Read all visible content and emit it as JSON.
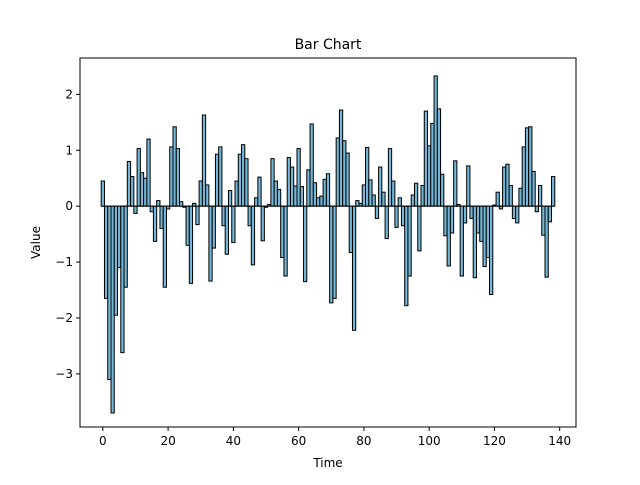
{
  "chart_data": {
    "type": "bar",
    "title": "Bar Chart",
    "xlabel": "Time",
    "ylabel": "Value",
    "xlim": [
      -7,
      145
    ],
    "ylim": [
      -3.95,
      2.65
    ],
    "xticks": [
      0,
      20,
      40,
      60,
      80,
      100,
      120,
      140
    ],
    "yticks": [
      -3,
      -2,
      -1,
      0,
      1,
      2
    ],
    "ytick_labels": [
      "−3",
      "−2",
      "−1",
      "0",
      "1",
      "2"
    ],
    "grid": false,
    "colors": {
      "bar_fill": "#75b7d6",
      "bar_edge": "#000000",
      "axes": "#000000"
    },
    "x": [
      0,
      1,
      2,
      3,
      4,
      5,
      6,
      7,
      8,
      9,
      10,
      11,
      12,
      13,
      14,
      15,
      16,
      17,
      18,
      19,
      20,
      21,
      22,
      23,
      24,
      25,
      26,
      27,
      28,
      29,
      30,
      31,
      32,
      33,
      34,
      35,
      36,
      37,
      38,
      39,
      40,
      41,
      42,
      43,
      44,
      45,
      46,
      47,
      48,
      49,
      50,
      51,
      52,
      53,
      54,
      55,
      56,
      57,
      58,
      59,
      60,
      61,
      62,
      63,
      64,
      65,
      66,
      67,
      68,
      69,
      70,
      71,
      72,
      73,
      74,
      75,
      76,
      77,
      78,
      79,
      80,
      81,
      82,
      83,
      84,
      85,
      86,
      87,
      88,
      89,
      90,
      91,
      92,
      93,
      94,
      95,
      96,
      97,
      98,
      99,
      100,
      101,
      102,
      103,
      104,
      105,
      106,
      107,
      108,
      109,
      110,
      111,
      112,
      113,
      114,
      115,
      116,
      117,
      118,
      119,
      120,
      121,
      122,
      123,
      124,
      125,
      126,
      127,
      128,
      129,
      130,
      131,
      132,
      133,
      134,
      135,
      136,
      137,
      138
    ],
    "values": [
      0.45,
      -1.65,
      -3.1,
      -3.7,
      -1.95,
      -1.1,
      -2.62,
      -1.45,
      0.8,
      0.53,
      -0.13,
      1.03,
      0.6,
      0.5,
      1.2,
      -0.1,
      -0.63,
      0.1,
      -0.4,
      -1.45,
      -0.05,
      1.06,
      1.42,
      1.03,
      0.08,
      -0.02,
      -0.7,
      -1.38,
      0.05,
      -0.33,
      0.45,
      1.63,
      0.38,
      -1.34,
      -0.75,
      0.93,
      1.06,
      -0.35,
      -0.86,
      0.28,
      -0.65,
      0.45,
      0.93,
      1.1,
      0.85,
      -0.35,
      -1.05,
      0.15,
      0.52,
      -0.62,
      -0.02,
      0.03,
      0.85,
      0.45,
      0.3,
      -0.92,
      -1.25,
      0.87,
      0.7,
      0.36,
      1.03,
      0.35,
      -1.35,
      0.65,
      1.47,
      0.42,
      0.15,
      0.18,
      0.48,
      0.58,
      -1.73,
      -1.65,
      1.22,
      1.72,
      1.17,
      0.95,
      -0.83,
      -2.22,
      0.1,
      0.05,
      0.38,
      1.05,
      0.47,
      0.2,
      -0.22,
      0.7,
      0.25,
      -0.58,
      1.03,
      0.45,
      -0.38,
      0.15,
      -0.35,
      -1.78,
      -1.25,
      0.2,
      0.41,
      -0.8,
      0.37,
      1.7,
      1.08,
      1.48,
      2.33,
      1.74,
      0.57,
      -0.53,
      -1.07,
      -0.48,
      0.81,
      0.03,
      -1.25,
      -0.3,
      0.72,
      -0.22,
      -1.28,
      -0.48,
      -0.63,
      -1.08,
      -0.92,
      -1.58,
      0.02,
      0.25,
      -0.05,
      0.7,
      0.75,
      0.37,
      -0.22,
      -0.3,
      0.32,
      1.06,
      1.4,
      1.42,
      0.62,
      -0.1,
      0.37,
      -0.52,
      -1.27,
      -0.28,
      0.53
    ]
  }
}
